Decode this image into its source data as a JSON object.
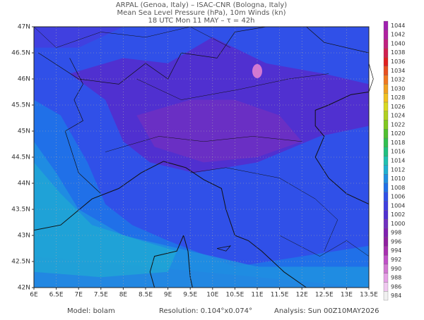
{
  "header": {
    "line1": "ARPAL (Genoa, Italy)  –  ISAC-CNR (Bologna, Italy)",
    "line2": "Mean Sea Level Pressure (hPa), 10m Winds (kn)",
    "line3": "18 UTC Mon 11 MAY  –  τ = 42h"
  },
  "map": {
    "lat_lim": [
      42,
      47
    ],
    "lon_lim": [
      6,
      13.5
    ],
    "lat_ticks": [
      {
        "value": 47,
        "label": "47N"
      },
      {
        "value": 46.5,
        "label": "46.5N"
      },
      {
        "value": 46,
        "label": "46N"
      },
      {
        "value": 45.5,
        "label": "45.5N"
      },
      {
        "value": 45,
        "label": "45N"
      },
      {
        "value": 44.5,
        "label": "44.5N"
      },
      {
        "value": 44,
        "label": "44N"
      },
      {
        "value": 43.5,
        "label": "43.5N"
      },
      {
        "value": 43,
        "label": "43N"
      },
      {
        "value": 42.5,
        "label": "42.5N"
      },
      {
        "value": 42,
        "label": "42N"
      }
    ],
    "lon_ticks": [
      {
        "value": 6,
        "label": "6E"
      },
      {
        "value": 6.5,
        "label": "6.5E"
      },
      {
        "value": 7,
        "label": "7E"
      },
      {
        "value": 7.5,
        "label": "7.5E"
      },
      {
        "value": 8,
        "label": "8E"
      },
      {
        "value": 8.5,
        "label": "8.5E"
      },
      {
        "value": 9,
        "label": "9E"
      },
      {
        "value": 9.5,
        "label": "9.5E"
      },
      {
        "value": 10,
        "label": "10E"
      },
      {
        "value": 10.5,
        "label": "10.5E"
      },
      {
        "value": 11,
        "label": "11E"
      },
      {
        "value": 11.5,
        "label": "11.5E"
      },
      {
        "value": 12,
        "label": "12E"
      },
      {
        "value": 12.5,
        "label": "12.5E"
      },
      {
        "value": 13,
        "label": "13E"
      },
      {
        "value": 13.5,
        "label": "13.5E"
      }
    ]
  },
  "colorbar": {
    "levels": [
      984,
      986,
      988,
      990,
      992,
      994,
      996,
      998,
      1000,
      1002,
      1004,
      1006,
      1008,
      1010,
      1012,
      1014,
      1016,
      1018,
      1020,
      1022,
      1024,
      1026,
      1028,
      1030,
      1032,
      1034,
      1036,
      1038,
      1040,
      1042,
      1044
    ],
    "colors": [
      "#f0f0f0",
      "#f0c8f0",
      "#e6a0e6",
      "#d278d2",
      "#c050c8",
      "#a830b0",
      "#9020a0",
      "#8020b0",
      "#7030c0",
      "#5030d0",
      "#4040e0",
      "#3050e8",
      "#2070e8",
      "#2090e0",
      "#20b0d0",
      "#20c0b0",
      "#20c080",
      "#30c050",
      "#50c030",
      "#80c820",
      "#b0d020",
      "#d8d820",
      "#f0c020",
      "#f0a020",
      "#f07820",
      "#e85020",
      "#e02020",
      "#d02050",
      "#c02080",
      "#b020a0",
      "#a020b0"
    ]
  },
  "footer": {
    "model": "Model: bolam",
    "resolution": "Resolution: 0.104°x0.074°",
    "analysis": "Analysis: Sun 00Z10MAY2026"
  }
}
